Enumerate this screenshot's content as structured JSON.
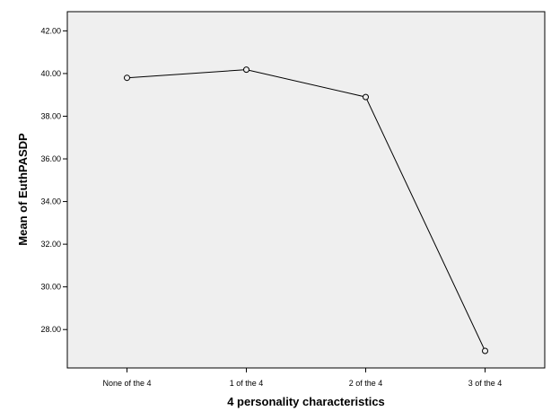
{
  "chart_data": {
    "type": "line",
    "title": "",
    "xlabel": "4 personality characteristics",
    "ylabel": "Mean of EuthPASDP",
    "categories": [
      "None of the 4",
      "1 of the 4",
      "2 of the 4",
      "3 of the 4"
    ],
    "values": [
      39.8,
      40.18,
      38.9,
      27.0
    ],
    "ylim": [
      26.2,
      42.9
    ],
    "yticks": [
      28.0,
      30.0,
      32.0,
      34.0,
      36.0,
      38.0,
      40.0,
      42.0
    ],
    "ytick_labels": [
      "28.00",
      "30.00",
      "32.00",
      "34.00",
      "36.00",
      "38.00",
      "40.00",
      "42.00"
    ],
    "grid": false,
    "legend": "none",
    "colors": {
      "plot_background": "#efefef",
      "line": "#000000",
      "marker_fill": "#efefef"
    },
    "marker": "open-circle"
  }
}
